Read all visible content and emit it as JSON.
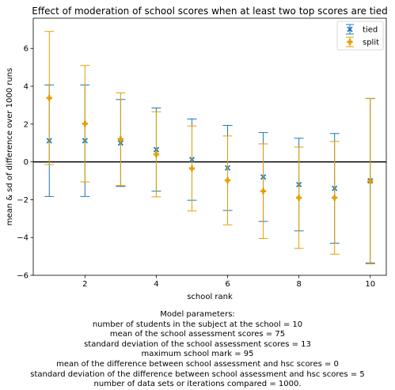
{
  "chart_data": {
    "type": "errorbar",
    "title": "Effect of moderation of school scores when at least two top scores are tied",
    "xlabel": "school rank",
    "ylabel": "mean & sd of difference over 1000 runs",
    "xlim": [
      0.55,
      10.45
    ],
    "ylim": [
      -6,
      7.6
    ],
    "xticks": [
      2,
      4,
      6,
      8,
      10
    ],
    "yticks": [
      -6,
      -4,
      -2,
      0,
      2,
      4,
      6
    ],
    "grid": false,
    "reference_line_y": 0,
    "legend_position": "top-right",
    "x": [
      1,
      2,
      3,
      4,
      5,
      6,
      7,
      8,
      9,
      10
    ],
    "series": [
      {
        "name": "tied",
        "color": "#1f77b4",
        "marker": "x",
        "mean": [
          1.12,
          1.12,
          1.0,
          0.65,
          0.12,
          -0.32,
          -0.8,
          -1.2,
          -1.4,
          -1.0
        ],
        "sd": [
          2.95,
          2.95,
          2.3,
          2.2,
          2.15,
          2.25,
          2.35,
          2.45,
          2.9,
          4.35
        ]
      },
      {
        "name": "split",
        "color": "#e69f00",
        "marker": "P",
        "mean": [
          3.38,
          2.02,
          1.2,
          0.4,
          -0.35,
          -0.98,
          -1.55,
          -1.9,
          -1.9,
          -1.02
        ],
        "sd": [
          3.52,
          3.08,
          2.45,
          2.25,
          2.25,
          2.35,
          2.5,
          2.68,
          2.98,
          4.38
        ]
      }
    ],
    "caption": [
      "Model parameters:",
      "number of students in the subject at the school = 10",
      "mean of the school assessment scores = 75",
      "standard deviation of the school assessment scores = 13",
      "maximum school mark = 95",
      "mean of the difference between school assessment and hsc scores = 0",
      "standard deviation of the difference between school assessment and hsc scores = 5",
      "number of data sets or iterations compared = 1000."
    ]
  }
}
